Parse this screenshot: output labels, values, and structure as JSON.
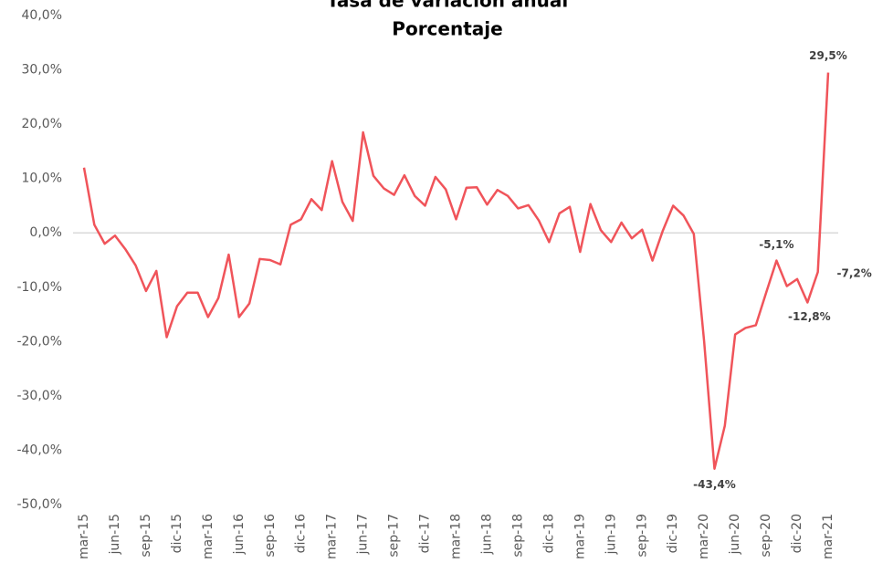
{
  "chart_data": {
    "type": "line",
    "title": "Tasa de variación anual",
    "subtitle": "Porcentaje",
    "categories": [
      "mar-15",
      null,
      null,
      "jun-15",
      null,
      null,
      "sep-15",
      null,
      null,
      "dic-15",
      null,
      null,
      "mar-16",
      null,
      null,
      "jun-16",
      null,
      null,
      "sep-16",
      null,
      null,
      "dic-16",
      null,
      null,
      "mar-17",
      null,
      null,
      "jun-17",
      null,
      null,
      "sep-17",
      null,
      null,
      "dic-17",
      null,
      null,
      "mar-18",
      null,
      null,
      "jun-18",
      null,
      null,
      "sep-18",
      null,
      null,
      "dic-18",
      null,
      null,
      "mar-19",
      null,
      null,
      "jun-19",
      null,
      null,
      "sep-19",
      null,
      null,
      "dic-19",
      null,
      null,
      "mar-20",
      null,
      null,
      "jun-20",
      null,
      null,
      "sep-20",
      null,
      null,
      "dic-20",
      null,
      null,
      "mar-21"
    ],
    "series": [
      {
        "name": "Tasa de variación anual",
        "color": "#f0545a",
        "values": [
          12,
          1.5,
          -2,
          -0.5,
          -3,
          -6,
          -10.7,
          -7,
          -19.2,
          -13.5,
          -11,
          -11,
          -15.5,
          -12,
          -4,
          -15.5,
          -13,
          -4.8,
          -5,
          -5.8,
          1.5,
          2.5,
          6.2,
          4.2,
          13.2,
          5.7,
          2.2,
          18.5,
          10.5,
          8.2,
          7,
          10.6,
          6.8,
          5,
          10.3,
          8,
          2.5,
          8.3,
          8.4,
          5.2,
          7.9,
          6.8,
          4.5,
          5.1,
          2.3,
          -1.7,
          3.6,
          4.8,
          -3.5,
          5.3,
          0.5,
          -1.7,
          1.9,
          -1,
          0.6,
          -5.1,
          0.4,
          5,
          3.2,
          -0.2,
          -20,
          -43.4,
          -35.5,
          -18.7,
          -17.5,
          -17,
          -11,
          -5.1,
          -9.8,
          -8.5,
          -12.8,
          -7.2,
          29.5
        ],
        "value_labels": [
          null,
          null,
          null,
          null,
          null,
          null,
          null,
          null,
          null,
          null,
          null,
          null,
          null,
          null,
          null,
          null,
          null,
          null,
          null,
          null,
          null,
          null,
          null,
          null,
          null,
          null,
          null,
          null,
          null,
          null,
          null,
          null,
          null,
          null,
          null,
          null,
          null,
          null,
          null,
          null,
          null,
          null,
          null,
          null,
          null,
          null,
          null,
          null,
          null,
          null,
          null,
          null,
          null,
          null,
          null,
          null,
          null,
          null,
          null,
          null,
          null,
          "-43,4%",
          null,
          null,
          null,
          null,
          null,
          "-5,1%",
          null,
          null,
          "-12,8%",
          "-7,2%",
          "29,5%"
        ]
      }
    ],
    "ylim": [
      -50,
      40
    ],
    "yticks": [
      {
        "value": -50,
        "label": "-50,0%"
      },
      {
        "value": -40,
        "label": "-40,0%"
      },
      {
        "value": -30,
        "label": "-30,0%"
      },
      {
        "value": -20,
        "label": "-20,0%"
      },
      {
        "value": -10,
        "label": "-10,0%"
      },
      {
        "value": 0,
        "label": "0,0%"
      },
      {
        "value": 10,
        "label": "10,0%"
      },
      {
        "value": 20,
        "label": "20,0%"
      },
      {
        "value": 30,
        "label": "30,0%"
      },
      {
        "value": 40,
        "label": "40,0%"
      }
    ],
    "grid": false
  }
}
